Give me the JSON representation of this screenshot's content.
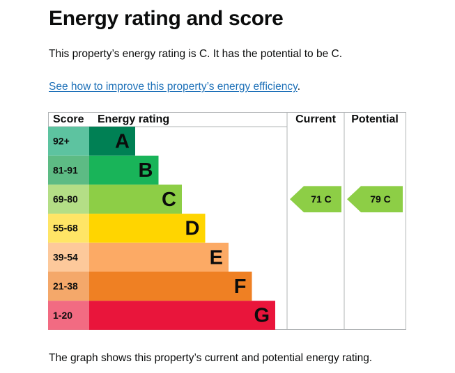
{
  "heading": "Energy rating and score",
  "summary": "This property’s energy rating is C. It has the potential to be C.",
  "improve_link": "See how to improve this property’s energy efficiency",
  "improve_link_suffix": ".",
  "caption": "The graph shows this property’s current and potential energy rating.",
  "chart": {
    "headers": {
      "score": "Score",
      "rating": "Energy rating",
      "current": "Current",
      "potential": "Potential"
    },
    "bands": [
      {
        "score": "92+",
        "letter": "A",
        "color": "#008054",
        "score_color": "#5dc3a0"
      },
      {
        "score": "81-91",
        "letter": "B",
        "color": "#19b459",
        "score_color": "#5dbb84"
      },
      {
        "score": "69-80",
        "letter": "C",
        "color": "#8dce46",
        "score_color": "#b4de86"
      },
      {
        "score": "55-68",
        "letter": "D",
        "color": "#ffd500",
        "score_color": "#ffe566"
      },
      {
        "score": "39-54",
        "letter": "E",
        "color": "#fcaa65",
        "score_color": "#fdc99b"
      },
      {
        "score": "21-38",
        "letter": "F",
        "color": "#ef8023",
        "score_color": "#f4a86a"
      },
      {
        "score": "1-20",
        "letter": "G",
        "color": "#e9153b",
        "score_color": "#f26b82"
      }
    ],
    "current": {
      "label": "71 C",
      "band": "C",
      "color": "#8dce46"
    },
    "potential": {
      "label": "79 C",
      "band": "C",
      "color": "#8dce46"
    },
    "border_color": "#b1b4b6"
  }
}
